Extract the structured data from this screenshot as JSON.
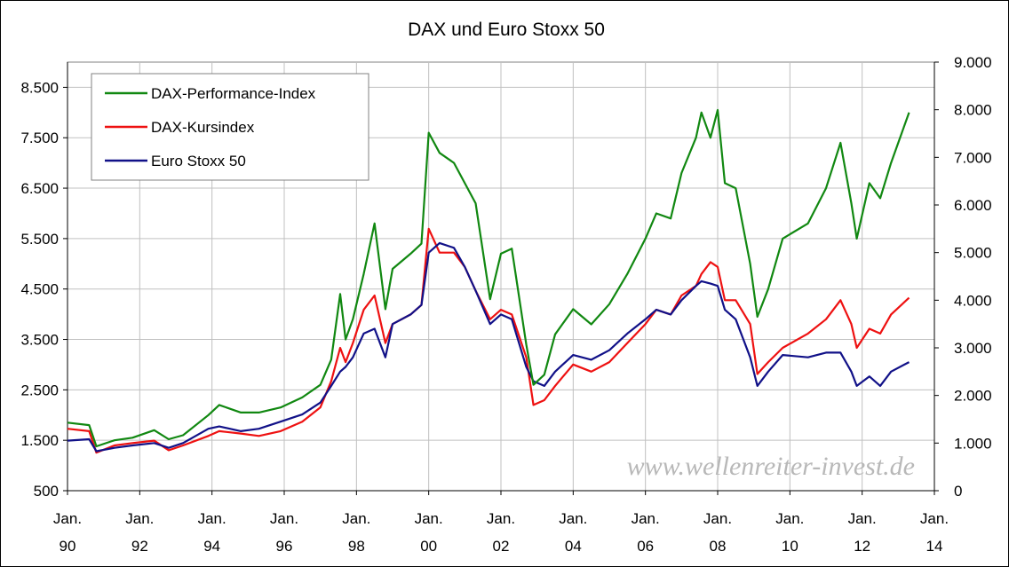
{
  "chart_data": {
    "type": "line",
    "title": "DAX und Euro Stoxx 50",
    "watermark": "www.wellenreiter-invest.de",
    "x_range": [
      1990,
      2014
    ],
    "x_ticks": [
      {
        "year": 1990,
        "top": "Jan.",
        "bottom": "90"
      },
      {
        "year": 1992,
        "top": "Jan.",
        "bottom": "92"
      },
      {
        "year": 1994,
        "top": "Jan.",
        "bottom": "94"
      },
      {
        "year": 1996,
        "top": "Jan.",
        "bottom": "96"
      },
      {
        "year": 1998,
        "top": "Jan.",
        "bottom": "98"
      },
      {
        "year": 2000,
        "top": "Jan.",
        "bottom": "00"
      },
      {
        "year": 2002,
        "top": "Jan.",
        "bottom": "02"
      },
      {
        "year": 2004,
        "top": "Jan.",
        "bottom": "04"
      },
      {
        "year": 2006,
        "top": "Jan.",
        "bottom": "06"
      },
      {
        "year": 2008,
        "top": "Jan.",
        "bottom": "08"
      },
      {
        "year": 2010,
        "top": "Jan.",
        "bottom": "10"
      },
      {
        "year": 2012,
        "top": "Jan.",
        "bottom": "12"
      },
      {
        "year": 2014,
        "top": "Jan.",
        "bottom": "14"
      }
    ],
    "y_left": {
      "range": [
        500,
        9000
      ],
      "ticks": [
        500,
        1500,
        2500,
        3500,
        4500,
        5500,
        6500,
        7500,
        8500
      ],
      "tick_labels": [
        "500",
        "1.500",
        "2.500",
        "3.500",
        "4.500",
        "5.500",
        "6.500",
        "7.500",
        "8.500"
      ]
    },
    "y_right": {
      "range": [
        0,
        9000
      ],
      "ticks": [
        0,
        1000,
        2000,
        3000,
        4000,
        5000,
        6000,
        7000,
        8000,
        9000
      ],
      "tick_labels": [
        "0",
        "1.000",
        "2.000",
        "3.000",
        "4.000",
        "5.000",
        "6.000",
        "7.000",
        "8.000",
        "9.000"
      ]
    },
    "grid": true,
    "legend_position": "top-left",
    "series": [
      {
        "name": "DAX-Performance-Index",
        "color": "#118811",
        "axis": "left",
        "points": [
          [
            1990.0,
            1850
          ],
          [
            1990.6,
            1800
          ],
          [
            1990.8,
            1380
          ],
          [
            1991.3,
            1500
          ],
          [
            1991.8,
            1550
          ],
          [
            1992.4,
            1700
          ],
          [
            1992.8,
            1520
          ],
          [
            1993.2,
            1600
          ],
          [
            1993.9,
            2000
          ],
          [
            1994.2,
            2200
          ],
          [
            1994.8,
            2050
          ],
          [
            1995.3,
            2050
          ],
          [
            1995.9,
            2150
          ],
          [
            1996.5,
            2350
          ],
          [
            1997.0,
            2600
          ],
          [
            1997.3,
            3100
          ],
          [
            1997.55,
            4400
          ],
          [
            1997.7,
            3500
          ],
          [
            1997.9,
            3900
          ],
          [
            1998.2,
            4800
          ],
          [
            1998.5,
            5800
          ],
          [
            1998.8,
            4100
          ],
          [
            1999.0,
            4900
          ],
          [
            1999.5,
            5200
          ],
          [
            1999.8,
            5400
          ],
          [
            2000.0,
            7600
          ],
          [
            2000.3,
            7200
          ],
          [
            2000.7,
            7000
          ],
          [
            2001.0,
            6600
          ],
          [
            2001.3,
            6200
          ],
          [
            2001.7,
            4300
          ],
          [
            2002.0,
            5200
          ],
          [
            2002.3,
            5300
          ],
          [
            2002.7,
            3400
          ],
          [
            2002.9,
            2600
          ],
          [
            2003.2,
            2800
          ],
          [
            2003.5,
            3600
          ],
          [
            2004.0,
            4100
          ],
          [
            2004.5,
            3800
          ],
          [
            2005.0,
            4200
          ],
          [
            2005.5,
            4800
          ],
          [
            2006.0,
            5500
          ],
          [
            2006.3,
            6000
          ],
          [
            2006.7,
            5900
          ],
          [
            2007.0,
            6800
          ],
          [
            2007.4,
            7500
          ],
          [
            2007.55,
            8000
          ],
          [
            2007.8,
            7500
          ],
          [
            2008.0,
            8050
          ],
          [
            2008.2,
            6600
          ],
          [
            2008.5,
            6500
          ],
          [
            2008.9,
            5000
          ],
          [
            2009.1,
            3950
          ],
          [
            2009.4,
            4500
          ],
          [
            2009.8,
            5500
          ],
          [
            2010.5,
            5800
          ],
          [
            2011.0,
            6500
          ],
          [
            2011.4,
            7400
          ],
          [
            2011.7,
            6200
          ],
          [
            2011.85,
            5500
          ],
          [
            2012.2,
            6600
          ],
          [
            2012.5,
            6300
          ],
          [
            2012.8,
            7000
          ],
          [
            2013.3,
            8000
          ]
        ]
      },
      {
        "name": "DAX-Kursindex",
        "color": "#ee1111",
        "axis": "right",
        "points": [
          [
            1990.0,
            1300
          ],
          [
            1990.6,
            1250
          ],
          [
            1990.8,
            800
          ],
          [
            1991.3,
            950
          ],
          [
            1991.8,
            1000
          ],
          [
            1992.4,
            1050
          ],
          [
            1992.8,
            850
          ],
          [
            1993.2,
            950
          ],
          [
            1993.9,
            1150
          ],
          [
            1994.2,
            1250
          ],
          [
            1994.8,
            1200
          ],
          [
            1995.3,
            1150
          ],
          [
            1995.9,
            1250
          ],
          [
            1996.5,
            1450
          ],
          [
            1997.0,
            1750
          ],
          [
            1997.3,
            2300
          ],
          [
            1997.55,
            3000
          ],
          [
            1997.7,
            2700
          ],
          [
            1997.9,
            3100
          ],
          [
            1998.2,
            3800
          ],
          [
            1998.5,
            4100
          ],
          [
            1998.8,
            3100
          ],
          [
            1999.0,
            3500
          ],
          [
            1999.5,
            3700
          ],
          [
            1999.8,
            3900
          ],
          [
            2000.0,
            5500
          ],
          [
            2000.3,
            5000
          ],
          [
            2000.7,
            5000
          ],
          [
            2001.0,
            4700
          ],
          [
            2001.3,
            4200
          ],
          [
            2001.7,
            3600
          ],
          [
            2002.0,
            3800
          ],
          [
            2002.3,
            3700
          ],
          [
            2002.7,
            2800
          ],
          [
            2002.9,
            1800
          ],
          [
            2003.2,
            1900
          ],
          [
            2003.5,
            2200
          ],
          [
            2004.0,
            2650
          ],
          [
            2004.5,
            2500
          ],
          [
            2005.0,
            2700
          ],
          [
            2005.5,
            3100
          ],
          [
            2006.0,
            3500
          ],
          [
            2006.3,
            3800
          ],
          [
            2006.7,
            3700
          ],
          [
            2007.0,
            4100
          ],
          [
            2007.4,
            4300
          ],
          [
            2007.55,
            4550
          ],
          [
            2007.8,
            4800
          ],
          [
            2008.0,
            4700
          ],
          [
            2008.2,
            4000
          ],
          [
            2008.5,
            4000
          ],
          [
            2008.9,
            3500
          ],
          [
            2009.1,
            2450
          ],
          [
            2009.4,
            2700
          ],
          [
            2009.8,
            3000
          ],
          [
            2010.5,
            3300
          ],
          [
            2011.0,
            3600
          ],
          [
            2011.4,
            4000
          ],
          [
            2011.7,
            3500
          ],
          [
            2011.85,
            3000
          ],
          [
            2012.2,
            3400
          ],
          [
            2012.5,
            3300
          ],
          [
            2012.8,
            3700
          ],
          [
            2013.3,
            4050
          ]
        ]
      },
      {
        "name": "Euro Stoxx 50",
        "color": "#111188",
        "axis": "right",
        "points": [
          [
            1990.0,
            1050
          ],
          [
            1990.6,
            1080
          ],
          [
            1990.8,
            830
          ],
          [
            1991.3,
            900
          ],
          [
            1991.8,
            950
          ],
          [
            1992.4,
            1000
          ],
          [
            1992.8,
            900
          ],
          [
            1993.2,
            1000
          ],
          [
            1993.9,
            1300
          ],
          [
            1994.2,
            1350
          ],
          [
            1994.8,
            1250
          ],
          [
            1995.3,
            1300
          ],
          [
            1995.9,
            1450
          ],
          [
            1996.5,
            1600
          ],
          [
            1997.0,
            1850
          ],
          [
            1997.3,
            2200
          ],
          [
            1997.55,
            2500
          ],
          [
            1997.7,
            2600
          ],
          [
            1997.9,
            2800
          ],
          [
            1998.2,
            3300
          ],
          [
            1998.5,
            3400
          ],
          [
            1998.8,
            2800
          ],
          [
            1999.0,
            3500
          ],
          [
            1999.5,
            3700
          ],
          [
            1999.8,
            3900
          ],
          [
            2000.0,
            5000
          ],
          [
            2000.3,
            5200
          ],
          [
            2000.7,
            5100
          ],
          [
            2001.0,
            4700
          ],
          [
            2001.3,
            4200
          ],
          [
            2001.7,
            3500
          ],
          [
            2002.0,
            3700
          ],
          [
            2002.3,
            3600
          ],
          [
            2002.7,
            2600
          ],
          [
            2002.9,
            2300
          ],
          [
            2003.2,
            2200
          ],
          [
            2003.5,
            2500
          ],
          [
            2004.0,
            2850
          ],
          [
            2004.5,
            2750
          ],
          [
            2005.0,
            2950
          ],
          [
            2005.5,
            3300
          ],
          [
            2006.0,
            3600
          ],
          [
            2006.3,
            3800
          ],
          [
            2006.7,
            3700
          ],
          [
            2007.0,
            4000
          ],
          [
            2007.4,
            4300
          ],
          [
            2007.55,
            4400
          ],
          [
            2007.8,
            4350
          ],
          [
            2008.0,
            4300
          ],
          [
            2008.2,
            3800
          ],
          [
            2008.5,
            3600
          ],
          [
            2008.9,
            2800
          ],
          [
            2009.1,
            2200
          ],
          [
            2009.4,
            2500
          ],
          [
            2009.8,
            2850
          ],
          [
            2010.5,
            2800
          ],
          [
            2011.0,
            2900
          ],
          [
            2011.4,
            2900
          ],
          [
            2011.7,
            2500
          ],
          [
            2011.85,
            2200
          ],
          [
            2012.2,
            2400
          ],
          [
            2012.5,
            2200
          ],
          [
            2012.8,
            2500
          ],
          [
            2013.3,
            2700
          ]
        ]
      }
    ]
  }
}
